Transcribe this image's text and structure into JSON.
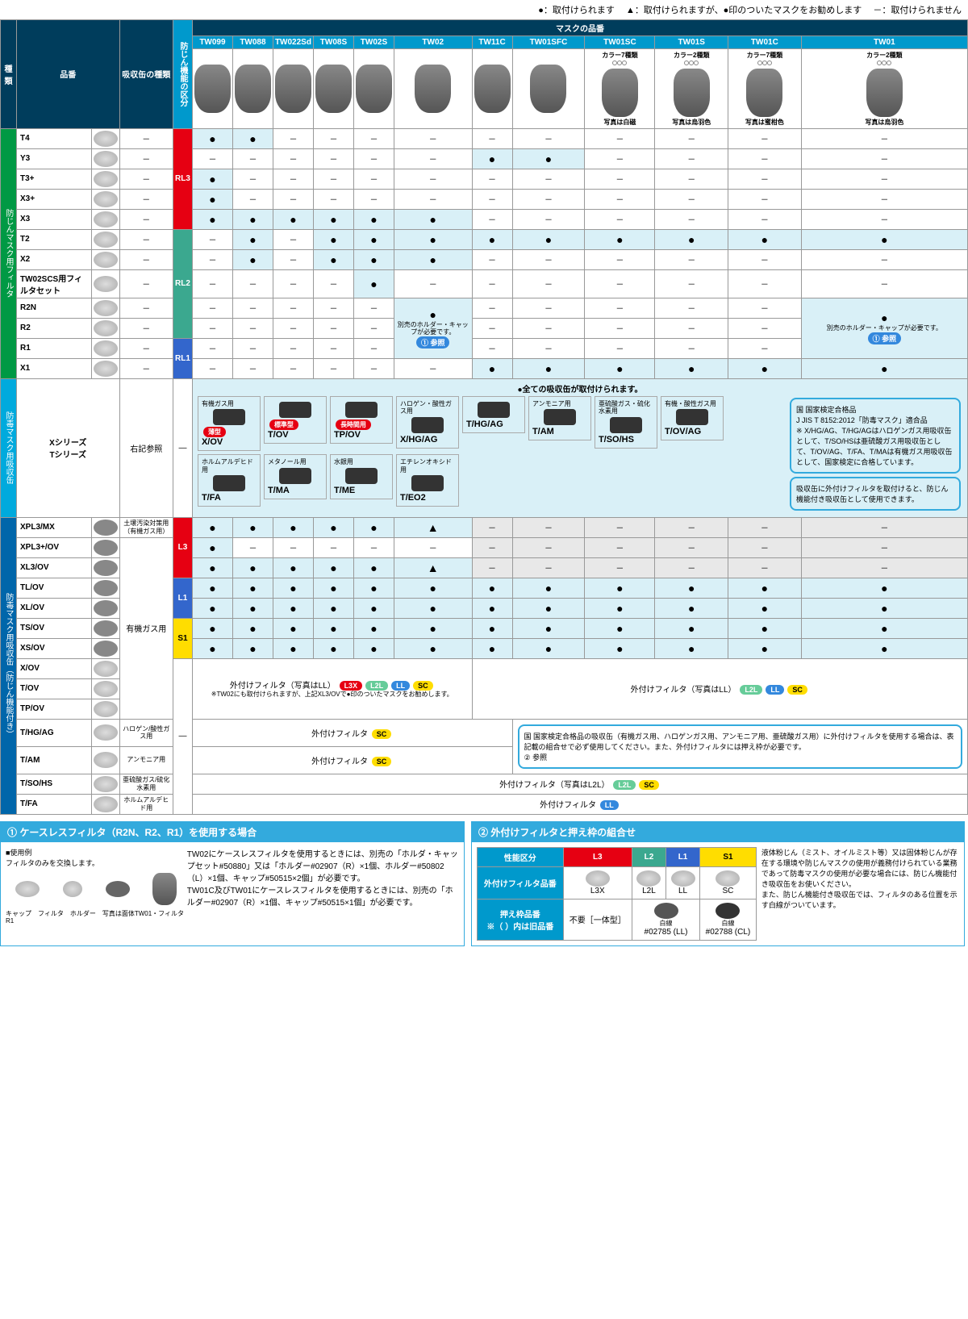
{
  "legend": {
    "ok": "●：取付けられます",
    "rec": "▲：取付けられますが、●印のついたマスクをお勧めします",
    "no": "－：取付けられません"
  },
  "topHeaders": {
    "type": "種類",
    "model": "品番",
    "canType": "吸収缶の種類",
    "dustClass": "防じん機能の区分",
    "maskModels": "マスクの品番"
  },
  "masks": [
    "TW099",
    "TW088",
    "TW022Sd",
    "TW08S",
    "TW02S",
    "TW02",
    "TW11C",
    "TW01SFC",
    "TW01SC",
    "TW01S",
    "TW01C",
    "TW01"
  ],
  "maskNotes": {
    "TW01SC": "カラー7種類\n写真は白磁",
    "TW01S": "カラー2種類\n写真は烏羽色",
    "TW01C": "カラー7種類\n写真は蜜柑色",
    "TW01": "カラー2種類\n写真は烏羽色"
  },
  "categories": {
    "dust": "防じんマスク用フィルタ",
    "gas": "防毒マスク用吸収缶",
    "gasDust": "防毒マスク用吸収缶（防じん機能付き）"
  },
  "dustRows": [
    {
      "name": "T4",
      "can": "－",
      "cls": "RL3",
      "cells": [
        "●",
        "●",
        "－",
        "－",
        "－",
        "－",
        "－",
        "－",
        "－",
        "－",
        "－",
        "－"
      ]
    },
    {
      "name": "Y3",
      "can": "－",
      "cls": "RL3",
      "cells": [
        "－",
        "－",
        "－",
        "－",
        "－",
        "－",
        "●",
        "●",
        "－",
        "－",
        "－",
        "－"
      ]
    },
    {
      "name": "T3+",
      "can": "－",
      "cls": "RL3",
      "cells": [
        "●",
        "－",
        "－",
        "－",
        "－",
        "－",
        "－",
        "－",
        "－",
        "－",
        "－",
        "－"
      ]
    },
    {
      "name": "X3+",
      "can": "－",
      "cls": "RL3",
      "cells": [
        "●",
        "－",
        "－",
        "－",
        "－",
        "－",
        "－",
        "－",
        "－",
        "－",
        "－",
        "－"
      ]
    },
    {
      "name": "X3",
      "can": "－",
      "cls": "RL3",
      "cells": [
        "●",
        "●",
        "●",
        "●",
        "●",
        "●",
        "－",
        "－",
        "－",
        "－",
        "－",
        "－"
      ]
    },
    {
      "name": "T2",
      "can": "－",
      "cls": "RL2",
      "cells": [
        "－",
        "●",
        "－",
        "●",
        "●",
        "●",
        "●",
        "●",
        "●",
        "●",
        "●",
        "●"
      ]
    },
    {
      "name": "X2",
      "can": "－",
      "cls": "RL2",
      "cells": [
        "－",
        "●",
        "－",
        "●",
        "●",
        "●",
        "－",
        "－",
        "－",
        "－",
        "－",
        "－"
      ]
    },
    {
      "name": "TW02SCS用フィルタセット",
      "can": "－",
      "cls": "RL2",
      "cells": [
        "－",
        "－",
        "－",
        "－",
        "●",
        "－",
        "－",
        "－",
        "－",
        "－",
        "－",
        "－"
      ]
    },
    {
      "name": "R2N",
      "can": "－",
      "cls": "RL2",
      "cells": [
        "－",
        "－",
        "－",
        "－",
        "－",
        "●n",
        "－",
        "－",
        "－",
        "－",
        "－",
        "●n2"
      ]
    },
    {
      "name": "R2",
      "can": "－",
      "cls": "RL2",
      "cells": [
        "－",
        "－",
        "－",
        "－",
        "－",
        "",
        "－",
        "－",
        "－",
        "－",
        "－",
        ""
      ]
    },
    {
      "name": "R1",
      "can": "－",
      "cls": "RL1",
      "cells": [
        "－",
        "－",
        "－",
        "－",
        "－",
        "",
        "－",
        "－",
        "－",
        "－",
        "－",
        ""
      ]
    },
    {
      "name": "X1",
      "can": "－",
      "cls": "RL1",
      "cells": [
        "－",
        "－",
        "－",
        "－",
        "－",
        "－",
        "●",
        "●",
        "●",
        "●",
        "●",
        "●"
      ]
    }
  ],
  "r2note": {
    "line1": "別売のホルダー・キャップが必要です。",
    "ref": "① 参照"
  },
  "gasSection": {
    "rowName": "Xシリーズ\nTシリーズ",
    "canRef": "右記参照",
    "title": "●全ての吸収缶が取付けられます。",
    "cans": [
      {
        "top": "有機ガス用",
        "label": "X/OV",
        "tag": "薄型"
      },
      {
        "top": "",
        "label": "T/OV",
        "tag": "標準型"
      },
      {
        "top": "",
        "label": "TP/OV",
        "tag": "長時間用"
      },
      {
        "top": "ハロゲン・酸性ガス用",
        "label": "X/HG/AG"
      },
      {
        "top": "",
        "label": "T/HG/AG"
      },
      {
        "top": "アンモニア用",
        "label": "T/AM"
      },
      {
        "top": "亜硫酸ガス・硫化水素用",
        "label": "T/SO/HS"
      },
      {
        "top": "有機・酸性ガス用",
        "label": "T/OV/AG"
      },
      {
        "top": "ホルムアルデヒド用",
        "label": "T/FA"
      },
      {
        "top": "メタノール用",
        "label": "T/MA"
      },
      {
        "top": "水銀用",
        "label": "T/ME"
      },
      {
        "top": "エチレンオキシド用",
        "label": "T/EO2"
      }
    ],
    "info1": "国 国家検定合格品\nJ JIS T 8152:2012「防毒マスク」適合品\n※ X/HG/AG、T/HG/AGはハロゲンガス用吸収缶として、T/SO/HSは亜硫酸ガス用吸収缶として、T/OV/AG、T/FA、T/MAは有機ガス用吸収缶として、国家検定に合格しています。",
    "info2": "吸収缶に外付けフィルタを取付けると、防じん機能付き吸収缶として使用できます。"
  },
  "gasDustRows": [
    {
      "name": "XPL3/MX",
      "can": "土壌汚染対策用（有機ガス用）",
      "cls": "L3",
      "cells": [
        "●",
        "●",
        "●",
        "●",
        "●",
        "▲",
        "g",
        "g",
        "g",
        "g",
        "g",
        "g"
      ]
    },
    {
      "name": "XPL3+/OV",
      "can": "有機ガス用",
      "cls": "L3",
      "cells": [
        "●",
        "－",
        "－",
        "－",
        "－",
        "－",
        "g",
        "g",
        "g",
        "g",
        "g",
        "g"
      ]
    },
    {
      "name": "XL3/OV",
      "can": "有機ガス用",
      "cls": "L3",
      "cells": [
        "●",
        "●",
        "●",
        "●",
        "●",
        "▲",
        "g",
        "g",
        "g",
        "g",
        "g",
        "g"
      ]
    },
    {
      "name": "TL/OV",
      "can": "有機ガス用",
      "cls": "L1",
      "cells": [
        "●",
        "●",
        "●",
        "●",
        "●",
        "●",
        "●",
        "●",
        "●",
        "●",
        "●",
        "●"
      ]
    },
    {
      "name": "XL/OV",
      "can": "有機ガス用",
      "cls": "L1",
      "cells": [
        "●",
        "●",
        "●",
        "●",
        "●",
        "●",
        "●",
        "●",
        "●",
        "●",
        "●",
        "●"
      ]
    },
    {
      "name": "TS/OV",
      "can": "有機ガス用",
      "cls": "S1",
      "cells": [
        "●",
        "●",
        "●",
        "●",
        "●",
        "●",
        "●",
        "●",
        "●",
        "●",
        "●",
        "●"
      ]
    },
    {
      "name": "XS/OV",
      "can": "有機ガス用",
      "cls": "S1",
      "cells": [
        "●",
        "●",
        "●",
        "●",
        "●",
        "●",
        "●",
        "●",
        "●",
        "●",
        "●",
        "●"
      ]
    }
  ],
  "extFilterRows": [
    {
      "name": "X/OV",
      "can": "有機ガス用"
    },
    {
      "name": "T/OV",
      "can": "有機ガス用"
    },
    {
      "name": "TP/OV",
      "can": "有機ガス用"
    }
  ],
  "extNote1": {
    "label": "外付けフィルタ（写真はLL）",
    "badges": [
      "L3X",
      "L2L",
      "LL",
      "SC"
    ],
    "foot": "※TW02にも取付けられますが、上記XL3/OVで●印のついたマスクをお勧めします。"
  },
  "extNote2": {
    "label": "外付けフィルタ（写真はLL）",
    "badges": [
      "L2L",
      "LL",
      "SC"
    ]
  },
  "bottomRows": [
    {
      "name": "T/HG/AG",
      "can": "ハロゲン/酸性ガス用",
      "badges": [
        "SC"
      ],
      "txt": "外付けフィルタ"
    },
    {
      "name": "T/AM",
      "can": "アンモニア用",
      "badges": [
        "SC"
      ],
      "txt": "外付けフィルタ"
    },
    {
      "name": "T/SO/HS",
      "can": "亜硫酸ガス/硫化水素用",
      "badges": [
        "L2L",
        "SC"
      ],
      "txt": "外付けフィルタ（写真はL2L）"
    },
    {
      "name": "T/FA",
      "can": "ホルムアルデヒド用",
      "badges": [
        "LL"
      ],
      "txt": "外付けフィルタ"
    }
  ],
  "info3": "国 国家検定合格品の吸収缶（有機ガス用、ハロゲンガス用、アンモニア用、亜硫酸ガス用）に外付けフィルタを使用する場合は、表記載の組合せで必ず使用してください。また、外付けフィルタには押え枠が必要です。\n② 参照",
  "footer1": {
    "title": "① ケースレスフィルタ（R2N、R2、R1）を使用する場合",
    "usage": "■使用例\nフィルタのみを交換します。",
    "labels": "キャップ　フィルタ　ホルダー　写真は面体TW01・フィルタR1",
    "body": "TW02にケースレスフィルタを使用するときには、別売の「ホルダ・キャップセット#50880」又は「ホルダー#02907（R）×1個、ホルダー#50802（L）×1個、キャップ#50515×2個」が必要です。\nTW01C及びTW01にケースレスフィルタを使用するときには、別売の「ホルダー#02907（R）×1個、キャップ#50515×1個」が必要です。"
  },
  "footer2": {
    "title": "② 外付けフィルタと押え枠の組合せ",
    "headers": [
      "性能区分",
      "L3",
      "L2",
      "L1",
      "S1"
    ],
    "row1": "外付けフィルタ品番",
    "row1vals": [
      "L3X",
      "L2L",
      "LL",
      "SC"
    ],
    "row2": "押え枠品番\n※（ ）内は旧品番",
    "row2vals": [
      "不要［一体型］",
      "#02785 (LL)",
      "",
      "#02788 (CL)"
    ],
    "sideText": "液体粉じん（ミスト、オイルミスト等）又は固体粉じんが存在する環境や防じんマスクの使用が義務付けられている業務であって防毒マスクの使用が必要な場合には、防じん機能付き吸収缶をお使いください。\nまた、防じん機能付き吸収缶では、フィルタのある位置を示す白線がついています。",
    "whiteline": "白線"
  }
}
